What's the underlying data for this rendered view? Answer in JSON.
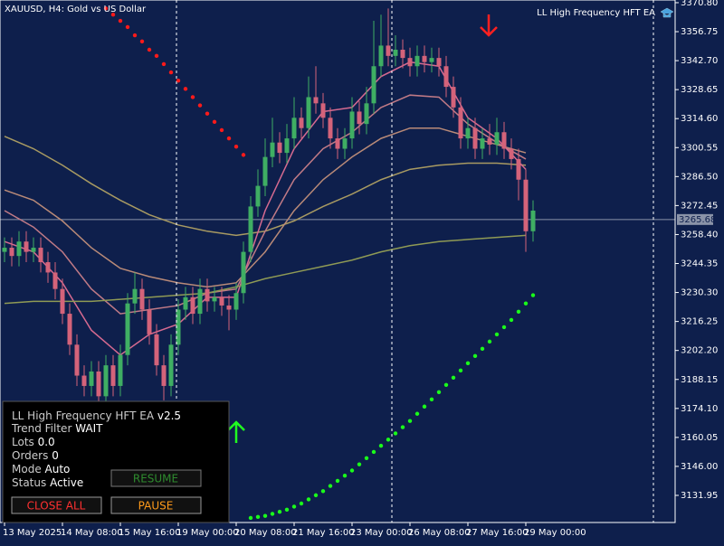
{
  "window": {
    "symbol_label": "XAUUSD, H4:  Gold vs US Dollar",
    "ea_label": "LL High Frequency HFT EA"
  },
  "chart_data": {
    "type": "candlestick",
    "categories": [
      "13 May 2025",
      null,
      null,
      null,
      null,
      null,
      null,
      null,
      "14 May 08:00",
      null,
      null,
      null,
      null,
      null,
      null,
      null,
      "15 May 16:00",
      null,
      null,
      null,
      null,
      null,
      null,
      null,
      "19 May 00:00",
      null,
      null,
      null,
      null,
      null,
      null,
      null,
      "20 May 08:00",
      null,
      null,
      null,
      null,
      null,
      null,
      null,
      "21 May 16:00",
      null,
      null,
      null,
      null,
      null,
      null,
      null,
      "23 May 00:00",
      null,
      null,
      null,
      null,
      null,
      null,
      null,
      "26 May 08:00",
      null,
      null,
      null,
      null,
      null,
      null,
      null,
      "27 May 16:00",
      null,
      null,
      null,
      null,
      null,
      null,
      null,
      "29 May 00:00",
      null
    ],
    "open": [
      3250,
      3252,
      3248,
      3255,
      3250,
      3252,
      3245,
      3240,
      3232,
      3220,
      3205,
      3190,
      3185,
      3192,
      3180,
      3195,
      3185,
      3200,
      3225,
      3232,
      3222,
      3210,
      3195,
      3185,
      3205,
      3222,
      3228,
      3220,
      3232,
      3226,
      3228,
      3224,
      3222,
      3230,
      3250,
      3272,
      3282,
      3296,
      3303,
      3298,
      3305,
      3315,
      3310,
      3325,
      3322,
      3315,
      3305,
      3300,
      3305,
      3318,
      3312,
      3322,
      3340,
      3350,
      3345,
      3348,
      3344,
      3340,
      3345,
      3342,
      3344,
      3340,
      3330,
      3320,
      3305,
      3310,
      3300,
      3305,
      3302,
      3308,
      3300,
      3295,
      3285,
      3260
    ],
    "high": [
      3257,
      3257,
      3260,
      3260,
      3257,
      3257,
      3250,
      3245,
      3237,
      3225,
      3210,
      3195,
      3197,
      3197,
      3200,
      3200,
      3205,
      3230,
      3240,
      3237,
      3227,
      3215,
      3200,
      3210,
      3227,
      3233,
      3233,
      3237,
      3237,
      3233,
      3233,
      3229,
      3235,
      3255,
      3277,
      3290,
      3305,
      3315,
      3308,
      3312,
      3325,
      3320,
      3335,
      3340,
      3327,
      3320,
      3310,
      3310,
      3325,
      3323,
      3330,
      3362,
      3365,
      3368,
      3355,
      3353,
      3349,
      3350,
      3350,
      3349,
      3349,
      3345,
      3335,
      3325,
      3315,
      3315,
      3310,
      3312,
      3315,
      3313,
      3305,
      3300,
      3290,
      3275
    ],
    "low": [
      3245,
      3243,
      3243,
      3245,
      3245,
      3240,
      3235,
      3227,
      3215,
      3200,
      3185,
      3180,
      3180,
      3175,
      3175,
      3180,
      3180,
      3195,
      3220,
      3217,
      3205,
      3190,
      3178,
      3180,
      3200,
      3217,
      3215,
      3215,
      3221,
      3221,
      3219,
      3212,
      3217,
      3225,
      3245,
      3267,
      3277,
      3291,
      3293,
      3293,
      3300,
      3305,
      3305,
      3317,
      3310,
      3300,
      3295,
      3295,
      3300,
      3307,
      3307,
      3317,
      3335,
      3340,
      3340,
      3339,
      3335,
      3335,
      3337,
      3337,
      3335,
      3325,
      3315,
      3300,
      3300,
      3295,
      3295,
      3297,
      3297,
      3295,
      3290,
      3275,
      3250,
      3255
    ],
    "close": [
      3252,
      3248,
      3255,
      3250,
      3252,
      3245,
      3240,
      3232,
      3220,
      3205,
      3190,
      3185,
      3192,
      3180,
      3195,
      3185,
      3200,
      3225,
      3232,
      3222,
      3210,
      3195,
      3185,
      3205,
      3222,
      3228,
      3220,
      3232,
      3226,
      3228,
      3224,
      3222,
      3230,
      3250,
      3272,
      3282,
      3296,
      3303,
      3298,
      3305,
      3315,
      3310,
      3325,
      3322,
      3315,
      3305,
      3300,
      3305,
      3318,
      3312,
      3322,
      3340,
      3350,
      3345,
      3348,
      3344,
      3340,
      3345,
      3342,
      3344,
      3340,
      3330,
      3320,
      3305,
      3310,
      3300,
      3305,
      3302,
      3308,
      3300,
      3295,
      3285,
      3260,
      3270
    ],
    "bull_color": "#3fae63",
    "bear_color": "#d4637a",
    "ylim": [
      3118.8,
      3372.1
    ],
    "yticks": [
      {
        "value": 3370.8,
        "label": "3370.80"
      },
      3356.75,
      {
        "value": 3342.7,
        "label": "3342.70"
      },
      3328.65,
      {
        "value": 3314.6,
        "label": "3314.60"
      },
      3300.55,
      {
        "value": 3286.5,
        "label": "3286.50"
      },
      3272.45,
      {
        "value": 3258.4,
        "label": "3258.40"
      },
      3244.35,
      {
        "value": 3230.3,
        "label": "3230.30"
      },
      3216.25,
      {
        "value": 3202.2,
        "label": "3202.20"
      },
      3188.15,
      {
        "value": 3174.1,
        "label": "3174.10"
      },
      3160.05,
      {
        "value": 3146,
        "label": "3146.00"
      },
      3131.95
    ],
    "current_price": 3265.68,
    "ma_x": [
      0,
      4,
      8,
      12,
      16,
      20,
      24,
      28,
      32,
      36,
      40,
      44,
      48,
      52,
      56,
      60,
      64,
      68,
      72
    ],
    "moving_averages": [
      {
        "color": "#a89a62",
        "values": [
          3306,
          3300,
          3292,
          3283,
          3275,
          3268,
          3263,
          3260,
          3258,
          3260,
          3265,
          3272,
          3278,
          3285,
          3290,
          3292,
          3293,
          3293,
          3292
        ]
      },
      {
        "color": "#b98a78",
        "values": [
          3280,
          3275,
          3265,
          3252,
          3242,
          3238,
          3235,
          3233,
          3235,
          3250,
          3270,
          3285,
          3296,
          3305,
          3310,
          3310,
          3306,
          3302,
          3298
        ]
      },
      {
        "color": "#c07a86",
        "values": [
          3270,
          3262,
          3250,
          3232,
          3220,
          3222,
          3224,
          3230,
          3232,
          3260,
          3285,
          3300,
          3308,
          3320,
          3326,
          3325,
          3312,
          3303,
          3295
        ]
      },
      {
        "color": "#d66a90",
        "values": [
          3255,
          3250,
          3235,
          3212,
          3200,
          3210,
          3215,
          3228,
          3228,
          3270,
          3300,
          3318,
          3320,
          3335,
          3342,
          3340,
          3315,
          3305,
          3290
        ]
      },
      {
        "color": "#8f9a55",
        "values": [
          3225,
          3226,
          3226,
          3226,
          3227,
          3228,
          3229,
          3230,
          3233,
          3237,
          3240,
          3243,
          3246,
          3250,
          3253,
          3255,
          3256,
          3257,
          3258
        ]
      }
    ],
    "sar": [
      {
        "color": "#ff1a1a",
        "values": [
          null,
          null,
          null,
          null,
          null,
          null,
          null,
          null,
          null,
          null,
          null,
          null,
          null,
          null,
          3368,
          3365,
          3362,
          3359,
          3355,
          3352,
          3348,
          3345,
          3341,
          3337,
          3333,
          3329,
          3325,
          3321,
          3317,
          3313,
          3309,
          3305,
          3301,
          3297,
          null,
          null,
          null,
          null,
          null,
          null,
          null,
          null,
          null,
          null,
          null,
          null,
          null,
          null,
          null,
          null,
          null,
          null,
          null,
          null,
          null,
          null,
          null,
          null,
          null,
          null,
          null,
          null,
          null,
          null,
          null,
          null,
          null,
          null,
          null,
          null,
          null,
          null,
          null,
          null
        ]
      },
      {
        "color": "#1aff1a",
        "values": [
          null,
          null,
          null,
          null,
          null,
          null,
          null,
          null,
          null,
          null,
          null,
          null,
          null,
          null,
          null,
          null,
          null,
          null,
          null,
          null,
          null,
          null,
          null,
          null,
          null,
          null,
          null,
          null,
          null,
          null,
          null,
          null,
          null,
          null,
          3121,
          3121.5,
          3122,
          3123,
          3124,
          3125,
          3126.5,
          3128,
          3130,
          3132,
          3134,
          3136.5,
          3139,
          3141.5,
          3144,
          3147,
          3150,
          3153,
          3156,
          3159,
          3162,
          3165,
          3168,
          3171.5,
          3175,
          3178.5,
          3182,
          3185.5,
          3189,
          3192.5,
          3196,
          3199.5,
          3203,
          3206.5,
          3210,
          3213.5,
          3217,
          3221,
          3225,
          3229
        ]
      }
    ]
  },
  "panel": {
    "title": "LL High Frequency HFT EA",
    "version": "v2.5",
    "rows": [
      {
        "label": "Trend Filter",
        "value": "WAIT"
      },
      {
        "label": "Lots",
        "value": "0.0"
      },
      {
        "label": "Orders",
        "value": "0"
      },
      {
        "label": "Mode",
        "value": "Auto"
      },
      {
        "label": "Status",
        "value": "Active"
      }
    ],
    "buttons": {
      "resume": "RESUME",
      "close_all": "CLOSE ALL",
      "pause": "PAUSE"
    }
  }
}
